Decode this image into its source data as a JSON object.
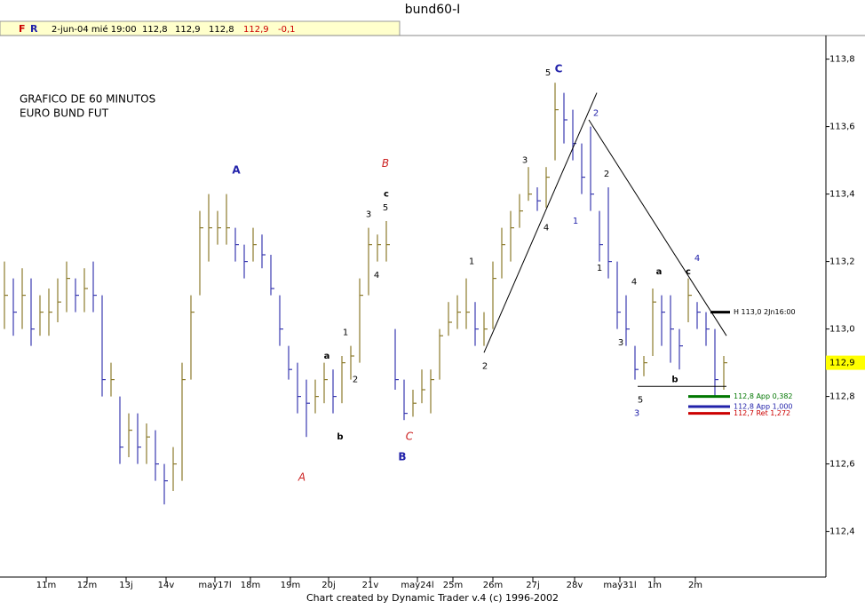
{
  "header": {
    "title": "bund60-I",
    "f": "F",
    "r": "R",
    "date": "2-jun-04 mié 19:00",
    "open": "112,8",
    "high": "112,9",
    "low": "112,8",
    "close": "112,9",
    "change": "-0,1"
  },
  "footer": "Chart created by Dynamic Trader v.4  (c) 1996-2002",
  "chart_data": {
    "type": "ohlc",
    "notes": [
      "GRAFICO DE 60 MINUTOS",
      "EURO BUND FUT"
    ],
    "up_color": "#8b7a2b",
    "down_color": "#3a3ab0",
    "xlim": [
      -0.5,
      92.5
    ],
    "ylim": [
      112.27,
      113.87
    ],
    "yticks": [
      {
        "value": 112.4,
        "label": "112,4"
      },
      {
        "value": 112.6,
        "label": "112,6"
      },
      {
        "value": 112.8,
        "label": "112,8"
      },
      {
        "value": 113.0,
        "label": "113,0"
      },
      {
        "value": 113.2,
        "label": "113,2"
      },
      {
        "value": 113.4,
        "label": "113,4"
      },
      {
        "value": 113.6,
        "label": "113,6"
      },
      {
        "value": 113.8,
        "label": "113,8"
      }
    ],
    "xticks": [
      {
        "value": 4.7,
        "label": "11m"
      },
      {
        "value": 9.3,
        "label": "12m"
      },
      {
        "value": 13.7,
        "label": "13j"
      },
      {
        "value": 18.2,
        "label": "14v"
      },
      {
        "value": 23.7,
        "label": "may17l"
      },
      {
        "value": 27.7,
        "label": "18m"
      },
      {
        "value": 32.2,
        "label": "19m"
      },
      {
        "value": 36.5,
        "label": "20j"
      },
      {
        "value": 41.2,
        "label": "21v"
      },
      {
        "value": 46.5,
        "label": "may24l"
      },
      {
        "value": 50.5,
        "label": "25m"
      },
      {
        "value": 55,
        "label": "26m"
      },
      {
        "value": 59.5,
        "label": "27j"
      },
      {
        "value": 64.2,
        "label": "28v"
      },
      {
        "value": 69.3,
        "label": "may31l"
      },
      {
        "value": 73.2,
        "label": "1m"
      },
      {
        "value": 77.8,
        "label": "2m"
      }
    ],
    "series": [
      {
        "high": [
          113.2,
          113.15,
          113.18,
          113.15,
          113.1,
          113.12,
          113.15,
          113.2,
          113.15,
          113.18,
          113.2,
          113.1,
          112.9,
          112.8,
          112.75,
          112.75,
          112.72,
          112.7,
          112.6,
          112.65,
          112.9,
          113.1,
          113.35,
          113.4,
          113.35,
          113.4,
          113.3,
          113.25,
          113.3,
          113.28,
          113.22,
          113.1,
          112.95,
          112.9,
          112.85,
          112.85,
          112.9,
          112.88,
          112.92,
          112.95,
          113.15,
          113.3,
          113.28,
          113.32,
          113.0,
          112.85,
          112.82,
          112.88,
          112.88,
          113.0,
          113.08,
          113.1,
          113.15,
          113.08,
          113.05,
          113.2,
          113.3,
          113.35,
          113.4,
          113.48,
          113.42,
          113.48,
          113.73,
          113.7,
          113.65,
          113.55,
          113.6,
          113.35,
          113.42,
          113.2,
          113.1,
          112.95,
          112.92,
          113.12,
          113.1,
          113.1,
          113.0,
          113.15,
          113.08,
          113.05,
          113.0,
          112.92
        ],
        "low": [
          113.0,
          112.98,
          113.0,
          112.95,
          112.98,
          112.98,
          113.02,
          113.05,
          113.05,
          113.05,
          113.05,
          112.8,
          112.8,
          112.6,
          112.62,
          112.6,
          112.6,
          112.55,
          112.48,
          112.52,
          112.55,
          112.85,
          113.1,
          113.2,
          113.25,
          113.25,
          113.2,
          113.15,
          113.2,
          113.18,
          113.1,
          112.95,
          112.85,
          112.75,
          112.68,
          112.75,
          112.78,
          112.75,
          112.78,
          112.85,
          112.9,
          113.1,
          113.2,
          113.2,
          112.82,
          112.73,
          112.74,
          112.78,
          112.75,
          112.85,
          112.98,
          113.0,
          113.0,
          112.95,
          112.95,
          113.0,
          113.15,
          113.2,
          113.3,
          113.38,
          113.35,
          113.36,
          113.5,
          113.55,
          113.5,
          113.4,
          113.35,
          113.2,
          113.15,
          113.0,
          112.95,
          112.85,
          112.86,
          112.92,
          112.95,
          112.9,
          112.88,
          113.02,
          113.0,
          112.95,
          112.8,
          112.82
        ],
        "close": [
          113.1,
          113.05,
          113.1,
          113.0,
          113.05,
          113.05,
          113.08,
          113.15,
          113.1,
          113.12,
          113.1,
          112.85,
          112.85,
          112.65,
          112.7,
          112.65,
          112.68,
          112.6,
          112.55,
          112.6,
          112.85,
          113.05,
          113.3,
          113.3,
          113.3,
          113.3,
          113.25,
          113.2,
          113.25,
          113.22,
          113.12,
          113.0,
          112.88,
          112.8,
          112.78,
          112.8,
          112.85,
          112.8,
          112.9,
          112.92,
          113.1,
          113.25,
          113.25,
          113.25,
          112.85,
          112.75,
          112.78,
          112.82,
          112.85,
          112.98,
          113.02,
          113.05,
          113.05,
          113.0,
          113.0,
          113.15,
          113.25,
          113.3,
          113.35,
          113.4,
          113.38,
          113.45,
          113.65,
          113.62,
          113.55,
          113.45,
          113.4,
          113.25,
          113.2,
          113.05,
          113.0,
          112.88,
          112.9,
          113.08,
          113.05,
          113.0,
          112.95,
          113.1,
          113.05,
          113.0,
          112.85,
          112.9
        ]
      }
    ],
    "trendlines": [
      [
        54,
        112.93,
        66.7,
        113.7
      ],
      [
        65.8,
        113.62,
        81.3,
        112.98
      ],
      [
        71.3,
        112.83,
        81.3,
        112.83
      ]
    ],
    "levels": [
      {
        "price": 113.05,
        "label": "H 113,0 2Jn16:00",
        "color": "#000000"
      },
      {
        "price": 112.8,
        "label": "112,8 App 0,382",
        "color": "#007700"
      },
      {
        "price": 112.77,
        "label": "112,8 App 1,000",
        "color": "#2222aa"
      },
      {
        "price": 112.75,
        "label": "112,7 Ret 1,272",
        "color": "#cc0000"
      }
    ],
    "last_price": {
      "value": 112.9,
      "label": "112,9"
    },
    "annotations": [
      {
        "text": "A",
        "x": 26.1,
        "y": 113.47,
        "color": "#2222aa"
      },
      {
        "text": "B",
        "x": 42.9,
        "y": 113.49,
        "color": "#cc2222"
      },
      {
        "text": "c",
        "x": 43,
        "y": 113.4,
        "color": "#000000"
      },
      {
        "text": "5",
        "x": 42.9,
        "y": 113.36,
        "color": "#000000"
      },
      {
        "text": "3",
        "x": 41,
        "y": 113.34,
        "color": "#000000"
      },
      {
        "text": "4",
        "x": 41.9,
        "y": 113.16,
        "color": "#000000"
      },
      {
        "text": "1",
        "x": 38.4,
        "y": 112.99,
        "color": "#000000"
      },
      {
        "text": "a",
        "x": 36.3,
        "y": 112.92,
        "color": "#000000"
      },
      {
        "text": "2",
        "x": 39.5,
        "y": 112.85,
        "color": "#000000"
      },
      {
        "text": "b",
        "x": 37.8,
        "y": 112.68,
        "color": "#000000"
      },
      {
        "text": "A",
        "x": 33.5,
        "y": 112.56,
        "color": "#cc2222"
      },
      {
        "text": "B",
        "x": 44.8,
        "y": 112.62,
        "color": "#2222aa"
      },
      {
        "text": "C",
        "x": 45.6,
        "y": 112.68,
        "color": "#cc2222"
      },
      {
        "text": "1",
        "x": 52.6,
        "y": 113.2,
        "color": "#000000"
      },
      {
        "text": "2",
        "x": 54.1,
        "y": 112.89,
        "color": "#000000"
      },
      {
        "text": "3",
        "x": 58.6,
        "y": 113.5,
        "color": "#000000"
      },
      {
        "text": "4",
        "x": 61,
        "y": 113.3,
        "color": "#000000"
      },
      {
        "text": "5",
        "x": 61.2,
        "y": 113.76,
        "color": "#000000"
      },
      {
        "text": "C",
        "x": 62.4,
        "y": 113.77,
        "color": "#2222aa"
      },
      {
        "text": "2",
        "x": 66.6,
        "y": 113.64,
        "color": "#2222aa"
      },
      {
        "text": "1",
        "x": 64.3,
        "y": 113.32,
        "color": "#2222aa"
      },
      {
        "text": "2",
        "x": 67.8,
        "y": 113.46,
        "color": "#000000"
      },
      {
        "text": "1",
        "x": 67,
        "y": 113.18,
        "color": "#000000"
      },
      {
        "text": "4",
        "x": 70.9,
        "y": 113.14,
        "color": "#000000"
      },
      {
        "text": "3",
        "x": 69.4,
        "y": 112.96,
        "color": "#000000"
      },
      {
        "text": "5",
        "x": 71.6,
        "y": 112.79,
        "color": "#000000"
      },
      {
        "text": "3",
        "x": 71.2,
        "y": 112.75,
        "color": "#2222aa"
      },
      {
        "text": "a",
        "x": 73.7,
        "y": 113.17,
        "color": "#000000"
      },
      {
        "text": "b",
        "x": 75.5,
        "y": 112.85,
        "color": "#000000"
      },
      {
        "text": "c",
        "x": 77,
        "y": 113.17,
        "color": "#000000"
      },
      {
        "text": "4",
        "x": 78,
        "y": 113.21,
        "color": "#2222aa"
      }
    ]
  }
}
